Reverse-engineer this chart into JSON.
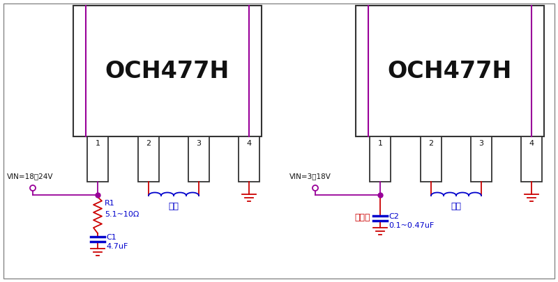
{
  "bg_color": "#ffffff",
  "chip_border": "#333333",
  "purple_line": "#990099",
  "red": "#cc0000",
  "blue": "#0000cc",
  "dark": "#111111",
  "chip_label": "OCH477H",
  "vin1_label": "VIN=18～24V",
  "vin2_label": "VIN=3～18V",
  "r1_label": "R1",
  "r1_val": "5.1~10Ω",
  "c1_label": "C1",
  "c1_val": "4.7uF",
  "c2_label": "C2",
  "c2_val": "0.1~0.47uF",
  "inductor_label": "线圈",
  "optional_label": "可选的",
  "outer_border": "#888888"
}
